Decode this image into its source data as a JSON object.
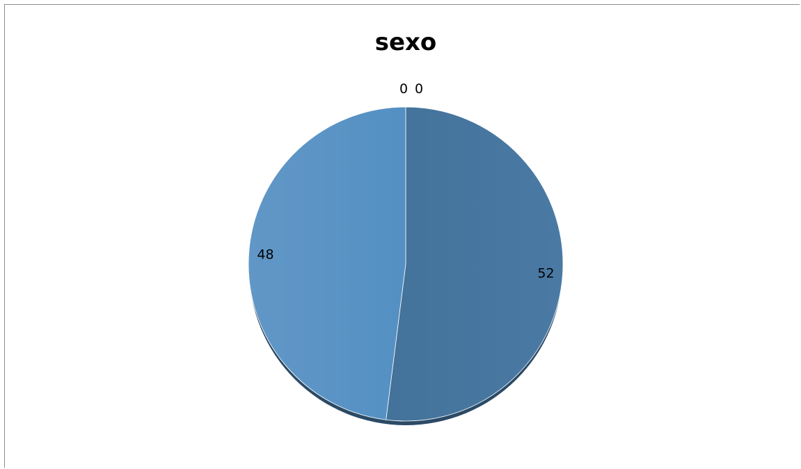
{
  "chart_data": {
    "type": "pie",
    "title": "sexo",
    "categories": [
      "",
      "",
      "",
      ""
    ],
    "values": [
      52,
      48,
      0,
      0
    ],
    "data_labels": [
      "52",
      "48",
      "0",
      "0"
    ],
    "legend": "none",
    "colors": [
      "#46769e",
      "#5a91c2",
      "#5a91c2",
      "#5a91c2"
    ],
    "shadow_color": "#2b4a66",
    "label_color": "#000000"
  }
}
